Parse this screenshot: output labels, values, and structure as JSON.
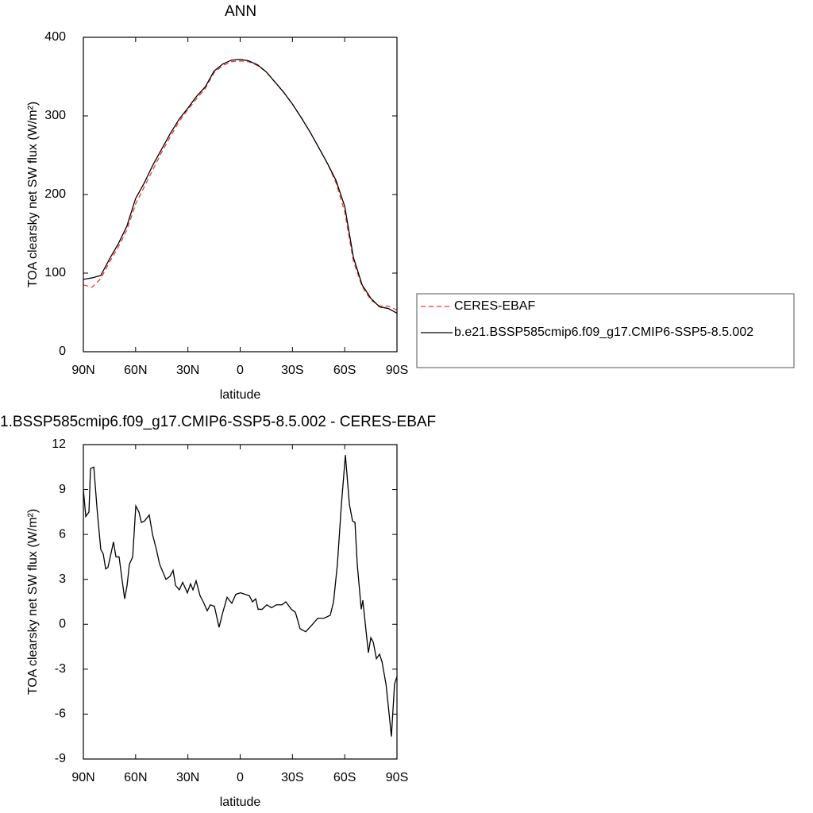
{
  "chart_data": [
    {
      "type": "line",
      "title": "ANN",
      "x_label": "latitude",
      "y_label": "TOA clearsky net SW flux (W/m²)",
      "x": [
        90,
        85,
        80,
        75,
        70,
        65,
        60,
        55,
        50,
        45,
        40,
        35,
        30,
        25,
        20,
        15,
        10,
        5,
        0,
        -5,
        -10,
        -15,
        -20,
        -25,
        -30,
        -35,
        -40,
        -45,
        -50,
        -55,
        -60,
        -65,
        -70,
        -75,
        -80,
        -85,
        -90
      ],
      "series": [
        {
          "name": "CERES-EBAF",
          "color": "#ff3333",
          "dashed": true,
          "values": [
            85,
            82,
            93,
            114,
            133,
            155,
            188,
            210,
            232,
            254,
            274,
            293,
            308,
            322,
            335,
            355,
            364,
            369,
            370,
            369,
            364,
            356,
            343,
            330,
            315,
            298,
            280,
            260,
            240,
            215,
            178,
            115,
            83,
            66,
            58,
            58,
            53
          ]
        },
        {
          "name": "b.e21.BSSP585cmip6.f09_g17.CMIP6-SSP5-8.5.002",
          "color": "#000000",
          "dashed": false,
          "values": [
            92,
            94,
            97,
            118,
            137,
            160,
            195,
            215,
            238,
            258,
            278,
            296,
            310,
            325,
            337,
            357,
            366,
            371,
            372,
            370,
            365,
            356,
            343,
            330,
            315,
            298,
            280,
            260,
            240,
            218,
            185,
            120,
            85,
            68,
            57,
            55,
            49
          ]
        }
      ],
      "xlim": [
        90,
        -90
      ],
      "xticks": [
        {
          "value": 90,
          "label": "90N"
        },
        {
          "value": 60,
          "label": "60N"
        },
        {
          "value": 30,
          "label": "30N"
        },
        0,
        {
          "value": -30,
          "label": "30S"
        },
        {
          "value": -60,
          "label": "60S"
        },
        {
          "value": -90,
          "label": "90S"
        }
      ],
      "ylim": [
        0,
        400
      ],
      "yticks": [
        0,
        100,
        200,
        300,
        400
      ],
      "legend": "right"
    },
    {
      "type": "line",
      "title": "1.BSSP585cmip6.f09_g17.CMIP6-SSP5-8.5.002 - CERES-EBAF",
      "x_label": "latitude",
      "y_label": "TOA clearsky net SW flux (W/m²)",
      "x": [
        90,
        88.6,
        86.8,
        85.9,
        84,
        82,
        80,
        78.6,
        77.2,
        75.9,
        74,
        72.7,
        71.3,
        69.5,
        67.7,
        66.3,
        64.9,
        63.6,
        61.7,
        59.9,
        58.1,
        56.7,
        54.9,
        52.2,
        50.3,
        48.1,
        46.2,
        44.4,
        42.6,
        40.3,
        38.5,
        37.1,
        34.9,
        33,
        30.3,
        28.5,
        27.1,
        25.3,
        23,
        21.2,
        18.9,
        17.1,
        14.8,
        12.1,
        10.2,
        7.5,
        4.8,
        2.5,
        -0.2,
        -2.9,
        -5.3,
        -7.1,
        -8.9,
        -10.3,
        -12.6,
        -15.3,
        -18,
        -20.8,
        -24,
        -26.2,
        -29.4,
        -31.7,
        -34.4,
        -37.6,
        -40.8,
        -44.5,
        -48.1,
        -51.7,
        -53.6,
        -55.8,
        -58.1,
        -60.4,
        -62.7,
        -64.5,
        -65.9,
        -67.2,
        -69.5,
        -70.4,
        -72.3,
        -73.6,
        -75,
        -76.4,
        -78.2,
        -80,
        -81.4,
        -83.7,
        -85.5,
        -86.8,
        -88.6,
        -90
      ],
      "series": [
        {
          "color": "#000000",
          "dashed": false,
          "values": [
            9.0,
            7.2,
            7.5,
            10.4,
            10.5,
            7.5,
            5.0,
            4.7,
            3.7,
            3.8,
            4.8,
            5.5,
            4.5,
            4.5,
            2.9,
            1.7,
            2.6,
            4.0,
            4.5,
            7.9,
            7.5,
            6.8,
            6.9,
            7.3,
            6.0,
            5.0,
            4.0,
            3.5,
            3.0,
            3.2,
            3.6,
            2.6,
            2.3,
            2.8,
            2.1,
            2.7,
            2.3,
            2.9,
            1.9,
            1.5,
            0.9,
            1.3,
            1.2,
            -0.2,
            0.7,
            1.8,
            1.4,
            2.0,
            2.1,
            2.0,
            1.9,
            1.5,
            1.7,
            1.0,
            1.0,
            1.3,
            1.1,
            1.3,
            1.3,
            1.5,
            1.0,
            0.8,
            -0.3,
            -0.5,
            -0.1,
            0.4,
            0.4,
            0.6,
            1.5,
            4.0,
            8.0,
            11.3,
            8.0,
            6.9,
            6.8,
            4.0,
            1.0,
            1.6,
            -0.5,
            -1.9,
            -0.9,
            -1.2,
            -2.3,
            -2.0,
            -2.5,
            -4.0,
            -6.0,
            -7.5,
            -4.0,
            -3.5
          ]
        }
      ],
      "xlim": [
        90,
        -90
      ],
      "xticks": [
        {
          "value": 90,
          "label": "90N"
        },
        {
          "value": 60,
          "label": "60N"
        },
        {
          "value": 30,
          "label": "30N"
        },
        0,
        {
          "value": -30,
          "label": "30S"
        },
        {
          "value": -60,
          "label": "60S"
        },
        {
          "value": -90,
          "label": "90S"
        }
      ],
      "ylim": [
        -9,
        12
      ],
      "yticks": [
        -9,
        -6,
        -3,
        0,
        3,
        6,
        9,
        12
      ]
    }
  ]
}
